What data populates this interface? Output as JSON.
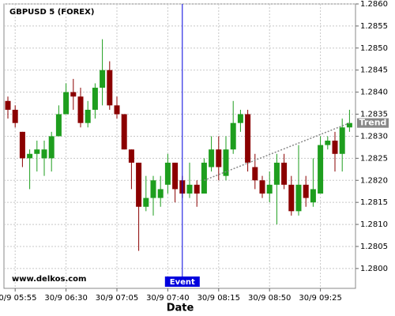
{
  "chart_data": {
    "type": "candlestick",
    "title": "GBPUSD 5 (FOREX)",
    "x_label": "Date",
    "watermark": "www.delkos.com",
    "categories": [
      null,
      "30/9 05:55",
      null,
      null,
      null,
      null,
      null,
      null,
      "30/9 06:30",
      null,
      null,
      null,
      null,
      null,
      null,
      "30/9 07:05",
      null,
      null,
      null,
      null,
      null,
      null,
      "30/9 07:40",
      null,
      null,
      null,
      null,
      null,
      null,
      "30/9 08:15",
      null,
      null,
      null,
      null,
      null,
      null,
      "30/9 08:50",
      null,
      null,
      null,
      null,
      null,
      null,
      "30/9 09:25",
      null,
      null,
      null,
      null
    ],
    "open": [
      1.2838,
      1.2836,
      1.2831,
      1.2825,
      1.2826,
      1.2825,
      1.2825,
      1.283,
      1.2835,
      1.284,
      1.2839,
      1.2833,
      1.2836,
      1.2841,
      1.2845,
      1.2837,
      1.2835,
      1.2827,
      1.2824,
      1.2814,
      1.2816,
      1.2816,
      1.2819,
      1.2824,
      1.282,
      1.2817,
      1.2819,
      1.2817,
      1.2823,
      1.2827,
      1.2821,
      1.2827,
      1.2833,
      1.2835,
      1.2823,
      1.282,
      1.2817,
      1.2819,
      1.2824,
      1.2819,
      1.2813,
      1.2819,
      1.2815,
      1.2817,
      1.2828,
      1.2829,
      1.2826,
      1.2832
    ],
    "high": [
      1.2839,
      1.2837,
      1.2831,
      1.2827,
      1.2829,
      1.2829,
      1.2831,
      1.2837,
      1.2842,
      1.2843,
      1.2841,
      1.2838,
      1.2842,
      1.2852,
      1.2847,
      1.2839,
      1.2835,
      1.2827,
      1.2824,
      1.2821,
      1.2821,
      1.2821,
      1.2826,
      1.2824,
      1.2821,
      1.2824,
      1.282,
      1.2825,
      1.283,
      1.283,
      1.283,
      1.2838,
      1.2836,
      1.2836,
      1.2826,
      1.2821,
      1.2822,
      1.2826,
      1.2826,
      1.2821,
      1.2828,
      1.2821,
      1.2825,
      1.283,
      1.283,
      1.2831,
      1.2834,
      1.2836
    ],
    "low": [
      1.2834,
      1.2832,
      1.2823,
      1.2818,
      1.2822,
      1.2821,
      1.2822,
      1.283,
      1.2835,
      1.2836,
      1.2832,
      1.2832,
      1.2834,
      1.2837,
      1.2836,
      1.2834,
      1.2827,
      1.2818,
      1.2804,
      1.2813,
      1.2812,
      1.2814,
      1.2817,
      1.2815,
      1.2816,
      1.2816,
      1.2814,
      1.2817,
      1.2822,
      1.282,
      1.282,
      1.2826,
      1.2831,
      1.2822,
      1.2818,
      1.2816,
      1.2815,
      1.281,
      1.2818,
      1.2812,
      1.2812,
      1.2814,
      1.2814,
      1.2817,
      1.2827,
      1.2822,
      1.2822,
      1.2831
    ],
    "close": [
      1.2836,
      1.2833,
      1.2825,
      1.2826,
      1.2827,
      1.2827,
      1.283,
      1.2835,
      1.284,
      1.2839,
      1.2833,
      1.2836,
      1.2841,
      1.2845,
      1.2837,
      1.2835,
      1.2827,
      1.2824,
      1.2814,
      1.2816,
      1.282,
      1.2818,
      1.2824,
      1.2818,
      1.2817,
      1.2819,
      1.2817,
      1.2824,
      1.2827,
      1.2823,
      1.2827,
      1.2833,
      1.2835,
      1.2824,
      1.282,
      1.2817,
      1.2819,
      1.2824,
      1.2819,
      1.2813,
      1.2819,
      1.2816,
      1.2818,
      1.2828,
      1.2829,
      1.2826,
      1.2832,
      1.2833
    ],
    "up_color": "#1e9e1e",
    "down_color": "#8b0000",
    "ylim": [
      1.27955,
      1.286
    ],
    "yticks": [
      {
        "value": 1.28,
        "label": "1.2800"
      },
      1.2805,
      {
        "value": 1.281,
        "label": "1.2810"
      },
      1.2815,
      {
        "value": 1.282,
        "label": "1.2820"
      },
      1.2825,
      {
        "value": 1.283,
        "label": "1.2830"
      },
      1.2835,
      {
        "value": 1.284,
        "label": "1.2840"
      },
      1.2845,
      {
        "value": 1.285,
        "label": "1.2850"
      },
      1.2855,
      {
        "value": 1.286,
        "label": "1.2860"
      }
    ],
    "grid": true,
    "event": {
      "label": "Event",
      "index": 24,
      "color": "#0000dd"
    },
    "trend": {
      "label": "Trend",
      "start_index": 27,
      "end_index": 47,
      "values": [
        1.282,
        1.2833
      ],
      "color": "#888888"
    }
  }
}
